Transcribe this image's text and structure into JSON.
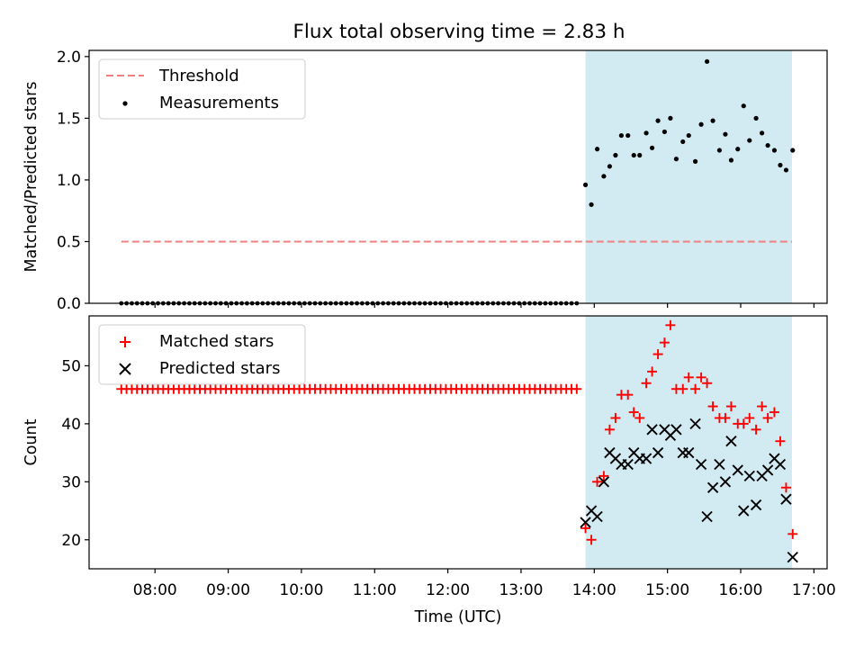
{
  "title": "Flux total observing time = 2.83 h",
  "colors": {
    "threshold": "#f08080",
    "shade": "#add8e6",
    "matched": "#ff0000",
    "predicted": "#000000",
    "measurement": "#000000"
  },
  "chart_data": [
    {
      "type": "scatter",
      "name": "ratio-panel",
      "ylabel": "Matched/Predicted stars",
      "ylim": [
        0,
        2.05
      ],
      "yticks": [
        0,
        0.5,
        1.0,
        1.5,
        2.0
      ],
      "ytick_labels": [
        "0.0",
        "0.5",
        "1.0",
        "1.5",
        "2.0"
      ],
      "legend": {
        "placement": "top-left",
        "entries": [
          "Threshold",
          "Measurements"
        ]
      },
      "shaded_span": {
        "x_start": 13.88,
        "x_end": 16.7
      },
      "threshold": {
        "name": "Threshold",
        "value": 0.5,
        "x_start": 7.54,
        "x_end": 16.7
      },
      "measurements_zero": {
        "x_start": 7.54,
        "x_end": 13.79,
        "step": 0.0715,
        "value": 0
      },
      "measurements": [
        [
          13.88,
          0.96
        ],
        [
          13.96,
          0.8
        ],
        [
          14.04,
          1.25
        ],
        [
          14.13,
          1.03
        ],
        [
          14.21,
          1.11
        ],
        [
          14.29,
          1.2
        ],
        [
          14.37,
          1.36
        ],
        [
          14.46,
          1.36
        ],
        [
          14.54,
          1.2
        ],
        [
          14.62,
          1.2
        ],
        [
          14.71,
          1.38
        ],
        [
          14.79,
          1.26
        ],
        [
          14.87,
          1.48
        ],
        [
          14.96,
          1.39
        ],
        [
          15.04,
          1.5
        ],
        [
          15.12,
          1.17
        ],
        [
          15.21,
          1.31
        ],
        [
          15.29,
          1.36
        ],
        [
          15.38,
          1.15
        ],
        [
          15.46,
          1.45
        ],
        [
          15.54,
          1.96
        ],
        [
          15.62,
          1.48
        ],
        [
          15.71,
          1.24
        ],
        [
          15.79,
          1.37
        ],
        [
          15.87,
          1.16
        ],
        [
          15.96,
          1.25
        ],
        [
          16.04,
          1.6
        ],
        [
          16.12,
          1.32
        ],
        [
          16.21,
          1.5
        ],
        [
          16.29,
          1.38
        ],
        [
          16.37,
          1.28
        ],
        [
          16.46,
          1.24
        ],
        [
          16.54,
          1.12
        ],
        [
          16.62,
          1.08
        ],
        [
          16.71,
          1.24
        ]
      ]
    },
    {
      "type": "scatter",
      "name": "count-panel",
      "xlabel": "Time (UTC)",
      "ylabel": "Count",
      "xlim": [
        7.1,
        17.18
      ],
      "ylim": [
        15,
        58.6
      ],
      "yticks": [
        20,
        30,
        40,
        50
      ],
      "xticks": [
        8,
        9,
        10,
        11,
        12,
        13,
        14,
        15,
        16,
        17
      ],
      "xtick_labels": [
        "08:00",
        "09:00",
        "10:00",
        "11:00",
        "12:00",
        "13:00",
        "14:00",
        "15:00",
        "16:00",
        "17:00"
      ],
      "legend": {
        "placement": "top-left",
        "entries": [
          "Matched stars",
          "Predicted stars"
        ]
      },
      "shaded_span": {
        "x_start": 13.88,
        "x_end": 16.7
      },
      "matched_constant": {
        "x_start": 7.54,
        "x_end": 13.79,
        "step": 0.0715,
        "value": 46
      },
      "matched": [
        [
          13.88,
          22
        ],
        [
          13.96,
          20
        ],
        [
          14.04,
          30
        ],
        [
          14.13,
          31
        ],
        [
          14.21,
          39
        ],
        [
          14.29,
          41
        ],
        [
          14.37,
          45
        ],
        [
          14.46,
          45
        ],
        [
          14.54,
          42
        ],
        [
          14.62,
          41
        ],
        [
          14.71,
          47
        ],
        [
          14.79,
          49
        ],
        [
          14.87,
          52
        ],
        [
          14.96,
          54
        ],
        [
          15.04,
          57
        ],
        [
          15.12,
          46
        ],
        [
          15.21,
          46
        ],
        [
          15.29,
          48
        ],
        [
          15.38,
          46
        ],
        [
          15.46,
          48
        ],
        [
          15.54,
          47
        ],
        [
          15.62,
          43
        ],
        [
          15.71,
          41
        ],
        [
          15.79,
          41
        ],
        [
          15.87,
          43
        ],
        [
          15.96,
          40
        ],
        [
          16.04,
          40
        ],
        [
          16.12,
          41
        ],
        [
          16.21,
          39
        ],
        [
          16.29,
          43
        ],
        [
          16.37,
          41
        ],
        [
          16.46,
          42
        ],
        [
          16.54,
          37
        ],
        [
          16.62,
          29
        ],
        [
          16.71,
          21
        ]
      ],
      "predicted": [
        [
          13.88,
          23
        ],
        [
          13.96,
          25
        ],
        [
          14.04,
          24
        ],
        [
          14.13,
          30
        ],
        [
          14.21,
          35
        ],
        [
          14.29,
          34
        ],
        [
          14.37,
          33
        ],
        [
          14.46,
          33
        ],
        [
          14.54,
          35
        ],
        [
          14.62,
          34
        ],
        [
          14.71,
          34
        ],
        [
          14.79,
          39
        ],
        [
          14.87,
          35
        ],
        [
          14.96,
          39
        ],
        [
          15.04,
          38
        ],
        [
          15.12,
          39
        ],
        [
          15.21,
          35
        ],
        [
          15.29,
          35
        ],
        [
          15.38,
          40
        ],
        [
          15.46,
          33
        ],
        [
          15.54,
          24
        ],
        [
          15.62,
          29
        ],
        [
          15.71,
          33
        ],
        [
          15.79,
          30
        ],
        [
          15.87,
          37
        ],
        [
          15.96,
          32
        ],
        [
          16.04,
          25
        ],
        [
          16.12,
          31
        ],
        [
          16.21,
          26
        ],
        [
          16.29,
          31
        ],
        [
          16.37,
          32
        ],
        [
          16.46,
          34
        ],
        [
          16.54,
          33
        ],
        [
          16.62,
          27
        ],
        [
          16.71,
          17
        ]
      ]
    }
  ]
}
